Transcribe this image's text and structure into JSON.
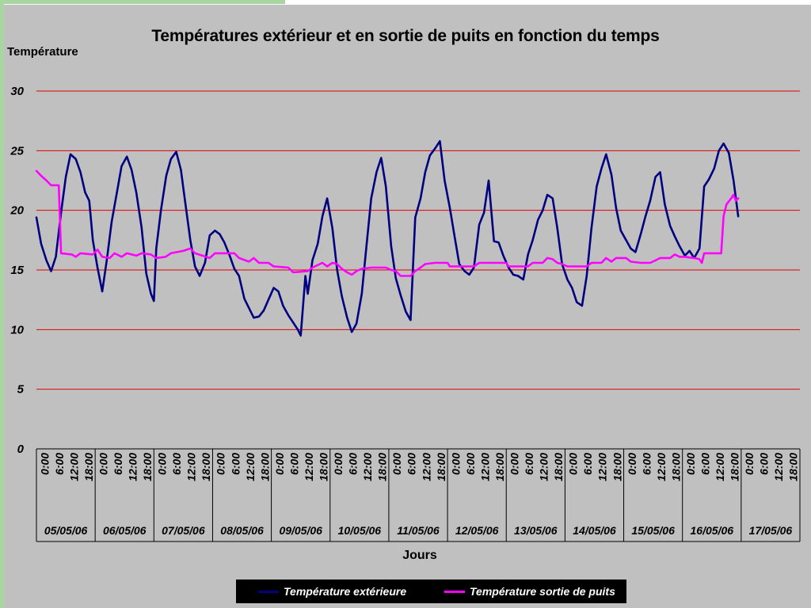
{
  "chart_data": {
    "type": "line",
    "title": "Températures extérieur et en sortie de puits en fonction du temps",
    "ylabel": "Température",
    "xlabel": "Jours",
    "ylim": [
      0,
      30
    ],
    "yticks": [
      "0",
      "5",
      "10",
      "15",
      "20",
      "25",
      "30"
    ],
    "grid": "horizontal, red",
    "legend_position": "bottom",
    "time_tick_labels": [
      "0:00",
      "6:00",
      "12:00",
      "18:00"
    ],
    "days": [
      "05/05/06",
      "06/05/06",
      "07/05/06",
      "08/05/06",
      "09/05/06",
      "10/05/06",
      "11/05/06",
      "12/05/06",
      "13/05/06",
      "14/05/06",
      "15/05/06",
      "16/05/06",
      "17/05/06"
    ],
    "series": [
      {
        "name": "Température extérieure",
        "color": "#000080",
        "points": [
          [
            0,
            19.4
          ],
          [
            0.08,
            17.2
          ],
          [
            0.17,
            15.8
          ],
          [
            0.25,
            14.9
          ],
          [
            0.33,
            16.1
          ],
          [
            0.42,
            19.8
          ],
          [
            0.5,
            22.8
          ],
          [
            0.58,
            24.7
          ],
          [
            0.67,
            24.3
          ],
          [
            0.75,
            23.2
          ],
          [
            0.83,
            21.5
          ],
          [
            0.9,
            20.8
          ],
          [
            0.96,
            17.5
          ],
          [
            1.04,
            15.2
          ],
          [
            1.12,
            13.2
          ],
          [
            1.2,
            15.9
          ],
          [
            1.28,
            19.0
          ],
          [
            1.36,
            21.2
          ],
          [
            1.45,
            23.7
          ],
          [
            1.54,
            24.5
          ],
          [
            1.62,
            23.4
          ],
          [
            1.7,
            21.5
          ],
          [
            1.79,
            18.6
          ],
          [
            1.87,
            14.7
          ],
          [
            1.95,
            13.0
          ],
          [
            2.0,
            12.4
          ],
          [
            2.04,
            16.8
          ],
          [
            2.12,
            20.0
          ],
          [
            2.21,
            22.9
          ],
          [
            2.29,
            24.3
          ],
          [
            2.38,
            24.9
          ],
          [
            2.46,
            23.4
          ],
          [
            2.54,
            20.4
          ],
          [
            2.62,
            17.5
          ],
          [
            2.7,
            15.3
          ],
          [
            2.78,
            14.5
          ],
          [
            2.87,
            15.6
          ],
          [
            2.95,
            17.9
          ],
          [
            3.04,
            18.3
          ],
          [
            3.12,
            18.0
          ],
          [
            3.2,
            17.3
          ],
          [
            3.29,
            16.2
          ],
          [
            3.37,
            15.1
          ],
          [
            3.45,
            14.5
          ],
          [
            3.54,
            12.6
          ],
          [
            3.62,
            11.8
          ],
          [
            3.7,
            11.0
          ],
          [
            3.79,
            11.1
          ],
          [
            3.87,
            11.6
          ],
          [
            3.95,
            12.5
          ],
          [
            4.04,
            13.5
          ],
          [
            4.12,
            13.2
          ],
          [
            4.2,
            12.0
          ],
          [
            4.29,
            11.2
          ],
          [
            4.37,
            10.6
          ],
          [
            4.45,
            10.0
          ],
          [
            4.5,
            9.5
          ],
          [
            4.58,
            14.5
          ],
          [
            4.62,
            13.0
          ],
          [
            4.7,
            15.8
          ],
          [
            4.79,
            17.2
          ],
          [
            4.87,
            19.5
          ],
          [
            4.95,
            21.0
          ],
          [
            5.04,
            18.5
          ],
          [
            5.12,
            15.0
          ],
          [
            5.2,
            12.8
          ],
          [
            5.29,
            11.0
          ],
          [
            5.37,
            9.8
          ],
          [
            5.45,
            10.5
          ],
          [
            5.54,
            13.0
          ],
          [
            5.62,
            17.0
          ],
          [
            5.7,
            21.0
          ],
          [
            5.79,
            23.2
          ],
          [
            5.87,
            24.4
          ],
          [
            5.95,
            22.0
          ],
          [
            6.04,
            17.0
          ],
          [
            6.12,
            14.3
          ],
          [
            6.2,
            12.9
          ],
          [
            6.29,
            11.5
          ],
          [
            6.37,
            10.8
          ],
          [
            6.45,
            19.4
          ],
          [
            6.54,
            21.0
          ],
          [
            6.62,
            23.2
          ],
          [
            6.7,
            24.6
          ],
          [
            6.79,
            25.2
          ],
          [
            6.87,
            25.8
          ],
          [
            6.95,
            22.5
          ],
          [
            7.04,
            20.2
          ],
          [
            7.12,
            17.8
          ],
          [
            7.2,
            15.5
          ],
          [
            7.29,
            14.9
          ],
          [
            7.37,
            14.6
          ],
          [
            7.45,
            15.2
          ],
          [
            7.54,
            18.8
          ],
          [
            7.62,
            19.8
          ],
          [
            7.7,
            22.5
          ],
          [
            7.79,
            17.4
          ],
          [
            7.87,
            17.3
          ],
          [
            7.95,
            16.2
          ],
          [
            8.04,
            15.2
          ],
          [
            8.12,
            14.6
          ],
          [
            8.2,
            14.5
          ],
          [
            8.29,
            14.2
          ],
          [
            8.37,
            16.3
          ],
          [
            8.45,
            17.5
          ],
          [
            8.54,
            19.2
          ],
          [
            8.62,
            20.0
          ],
          [
            8.7,
            21.3
          ],
          [
            8.79,
            21.0
          ],
          [
            8.87,
            18.5
          ],
          [
            8.95,
            15.5
          ],
          [
            9.04,
            14.2
          ],
          [
            9.12,
            13.5
          ],
          [
            9.2,
            12.3
          ],
          [
            9.29,
            12.0
          ],
          [
            9.37,
            14.5
          ],
          [
            9.45,
            18.5
          ],
          [
            9.54,
            22.0
          ],
          [
            9.62,
            23.5
          ],
          [
            9.7,
            24.7
          ],
          [
            9.79,
            23.0
          ],
          [
            9.87,
            20.2
          ],
          [
            9.95,
            18.3
          ],
          [
            10.04,
            17.5
          ],
          [
            10.12,
            16.8
          ],
          [
            10.2,
            16.5
          ],
          [
            10.29,
            18.0
          ],
          [
            10.37,
            19.5
          ],
          [
            10.45,
            20.8
          ],
          [
            10.54,
            22.8
          ],
          [
            10.62,
            23.2
          ],
          [
            10.7,
            20.5
          ],
          [
            10.79,
            18.7
          ],
          [
            10.87,
            17.8
          ],
          [
            10.95,
            17.0
          ],
          [
            11.04,
            16.2
          ],
          [
            11.12,
            16.6
          ],
          [
            11.2,
            16.0
          ],
          [
            11.29,
            16.8
          ],
          [
            11.37,
            22.0
          ],
          [
            11.45,
            22.6
          ],
          [
            11.54,
            23.5
          ],
          [
            11.62,
            25.0
          ],
          [
            11.7,
            25.6
          ],
          [
            11.79,
            24.8
          ],
          [
            11.87,
            22.5
          ],
          [
            11.95,
            19.5
          ]
        ]
      },
      {
        "name": "Température sortie de puits",
        "color": "#ff00ff",
        "points": [
          [
            0,
            23.3
          ],
          [
            0.08,
            22.9
          ],
          [
            0.17,
            22.5
          ],
          [
            0.25,
            22.1
          ],
          [
            0.38,
            22.1
          ],
          [
            0.42,
            16.4
          ],
          [
            0.6,
            16.3
          ],
          [
            0.67,
            16.1
          ],
          [
            0.75,
            16.4
          ],
          [
            0.96,
            16.3
          ],
          [
            1.04,
            16.7
          ],
          [
            1.12,
            16.1
          ],
          [
            1.25,
            16.0
          ],
          [
            1.33,
            16.4
          ],
          [
            1.45,
            16.1
          ],
          [
            1.54,
            16.4
          ],
          [
            1.7,
            16.2
          ],
          [
            1.79,
            16.4
          ],
          [
            1.95,
            16.3
          ],
          [
            2.04,
            16.0
          ],
          [
            2.2,
            16.1
          ],
          [
            2.29,
            16.4
          ],
          [
            2.5,
            16.6
          ],
          [
            2.62,
            16.8
          ],
          [
            2.7,
            16.4
          ],
          [
            2.95,
            16.0
          ],
          [
            3.04,
            16.4
          ],
          [
            3.37,
            16.4
          ],
          [
            3.45,
            16.0
          ],
          [
            3.62,
            15.7
          ],
          [
            3.7,
            16.0
          ],
          [
            3.79,
            15.6
          ],
          [
            3.95,
            15.6
          ],
          [
            4.04,
            15.3
          ],
          [
            4.29,
            15.2
          ],
          [
            4.37,
            14.8
          ],
          [
            4.62,
            14.9
          ],
          [
            4.7,
            15.2
          ],
          [
            4.87,
            15.6
          ],
          [
            4.95,
            15.3
          ],
          [
            5.04,
            15.6
          ],
          [
            5.12,
            15.5
          ],
          [
            5.2,
            15.1
          ],
          [
            5.29,
            14.8
          ],
          [
            5.37,
            14.6
          ],
          [
            5.45,
            14.9
          ],
          [
            5.54,
            15.1
          ],
          [
            5.7,
            15.2
          ],
          [
            5.95,
            15.2
          ],
          [
            6.04,
            15.0
          ],
          [
            6.12,
            14.9
          ],
          [
            6.2,
            14.5
          ],
          [
            6.37,
            14.5
          ],
          [
            6.45,
            14.9
          ],
          [
            6.54,
            15.2
          ],
          [
            6.62,
            15.5
          ],
          [
            6.79,
            15.6
          ],
          [
            7.0,
            15.6
          ],
          [
            7.04,
            15.3
          ],
          [
            7.37,
            15.3
          ],
          [
            7.45,
            15.3
          ],
          [
            7.54,
            15.6
          ],
          [
            8.0,
            15.6
          ],
          [
            8.04,
            15.3
          ],
          [
            8.37,
            15.3
          ],
          [
            8.45,
            15.6
          ],
          [
            8.62,
            15.6
          ],
          [
            8.7,
            16.0
          ],
          [
            8.79,
            15.9
          ],
          [
            8.87,
            15.6
          ],
          [
            8.95,
            15.5
          ],
          [
            9.04,
            15.3
          ],
          [
            9.37,
            15.3
          ],
          [
            9.45,
            15.6
          ],
          [
            9.62,
            15.6
          ],
          [
            9.7,
            16.0
          ],
          [
            9.79,
            15.7
          ],
          [
            9.87,
            16.0
          ],
          [
            10.04,
            16.0
          ],
          [
            10.12,
            15.7
          ],
          [
            10.29,
            15.6
          ],
          [
            10.45,
            15.6
          ],
          [
            10.54,
            15.8
          ],
          [
            10.62,
            16.0
          ],
          [
            10.79,
            16.0
          ],
          [
            10.87,
            16.3
          ],
          [
            10.95,
            16.1
          ],
          [
            11.04,
            16.1
          ],
          [
            11.2,
            16.0
          ],
          [
            11.29,
            15.9
          ],
          [
            11.33,
            15.6
          ],
          [
            11.37,
            16.4
          ],
          [
            11.62,
            16.4
          ],
          [
            11.66,
            16.4
          ],
          [
            11.7,
            19.5
          ],
          [
            11.75,
            20.5
          ],
          [
            11.83,
            21.0
          ],
          [
            11.87,
            21.3
          ],
          [
            11.91,
            20.8
          ],
          [
            11.95,
            21.0
          ]
        ]
      }
    ]
  }
}
